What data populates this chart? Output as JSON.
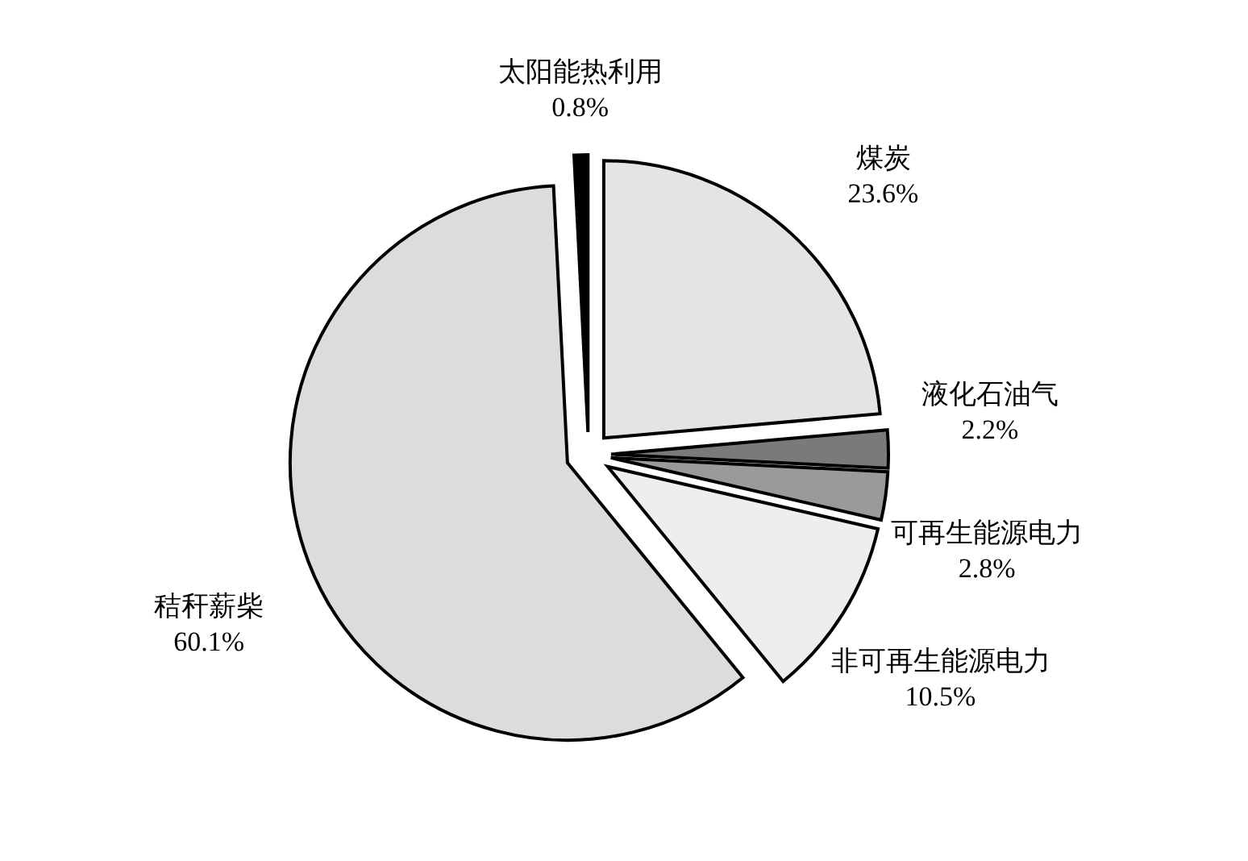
{
  "chart_data": {
    "type": "pie",
    "categories": [
      "煤炭",
      "液化石油气",
      "可再生能源电力",
      "非可再生能源电力",
      "秸秆薪柴",
      "太阳能热利用"
    ],
    "values": [
      23.6,
      2.2,
      2.8,
      10.5,
      60.1,
      0.8
    ],
    "colors": [
      "#e4e4e4",
      "#7a7a7a",
      "#9a9a9a",
      "#eeeeee",
      "#dcdcdc",
      "#000000"
    ],
    "value_labels": [
      "23.6%",
      "2.2%",
      "2.8%",
      "10.5%",
      "60.1%",
      "0.8%"
    ]
  }
}
